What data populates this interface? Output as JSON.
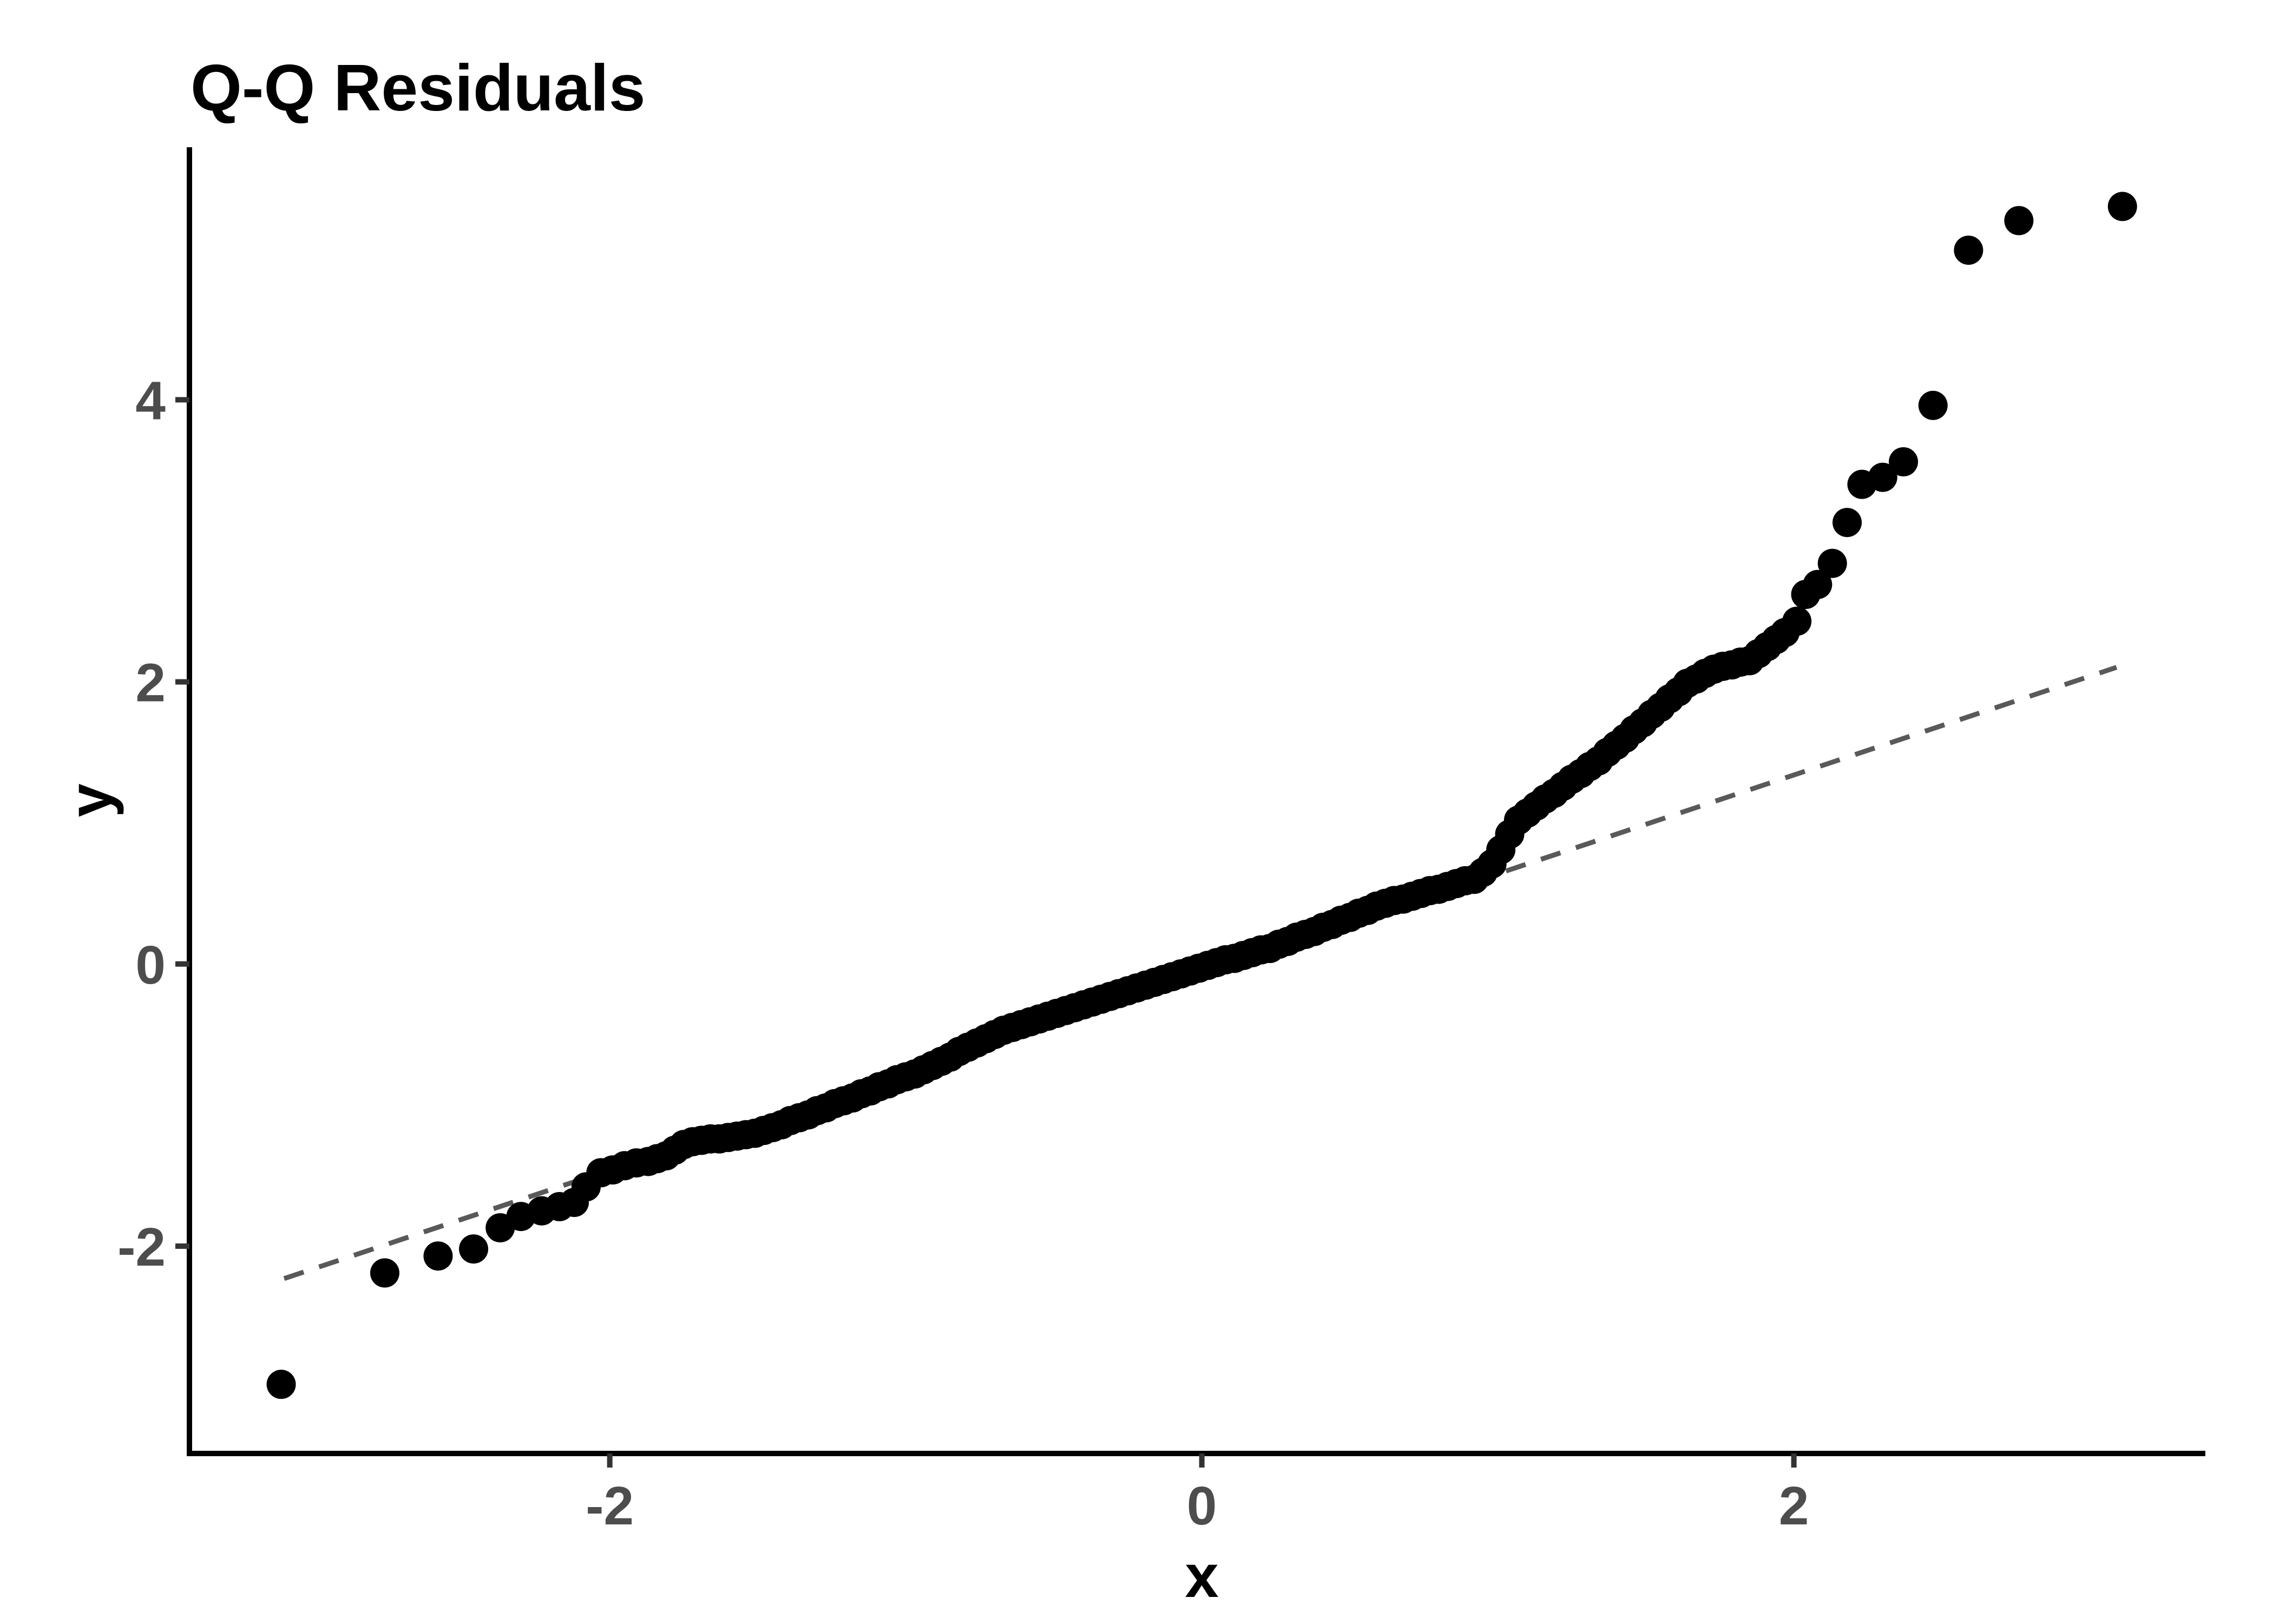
{
  "chart_data": {
    "type": "scatter",
    "title": "Q-Q Residuals",
    "xlabel": "x",
    "ylabel": "y",
    "x_ticks": {
      "values": [
        -2,
        0,
        2
      ],
      "labels": [
        "-2",
        "0",
        "2"
      ]
    },
    "y_ticks": {
      "values": [
        -2,
        0,
        2,
        4
      ],
      "labels": [
        "-2",
        "0",
        "2",
        "4"
      ]
    },
    "xlim": [
      -3.42,
      3.39
    ],
    "ylim": [
      -3.47,
      5.79
    ],
    "grid": false,
    "legend": null,
    "background_color": "#ffffff",
    "point_color": "#000000",
    "axis_line_color": "#000000",
    "tick_color": "#333333",
    "tick_label_color": "#4d4d4d",
    "reference_line": {
      "style": "dashed",
      "slope": 0.7,
      "intercept": -0.06,
      "x_start": -3.1,
      "x_end": 3.09,
      "color": "#595959"
    },
    "points": [
      [
        -3.11,
        -2.98
      ],
      [
        -2.76,
        -2.19
      ],
      [
        -2.58,
        -2.07
      ],
      [
        -2.46,
        -2.02
      ],
      [
        -2.37,
        -1.87
      ],
      [
        -2.3,
        -1.79
      ],
      [
        -2.23,
        -1.75
      ],
      [
        -2.17,
        -1.72
      ],
      [
        -2.12,
        -1.69
      ],
      [
        -2.08,
        -1.58
      ],
      [
        -2.03,
        -1.48
      ],
      [
        -1.99,
        -1.46
      ],
      [
        -1.95,
        -1.43
      ],
      [
        -1.91,
        -1.41
      ],
      [
        -1.87,
        -1.4
      ],
      [
        -1.84,
        -1.38
      ],
      [
        -1.81,
        -1.36
      ],
      [
        -1.78,
        -1.32
      ],
      [
        -1.75,
        -1.28
      ],
      [
        -1.72,
        -1.26
      ],
      [
        -1.69,
        -1.25
      ],
      [
        -1.66,
        -1.24
      ],
      [
        -1.63,
        -1.24
      ],
      [
        -1.6,
        -1.23
      ],
      [
        -1.57,
        -1.22
      ],
      [
        -1.54,
        -1.21
      ],
      [
        -1.51,
        -1.2
      ],
      [
        -1.48,
        -1.18
      ],
      [
        -1.45,
        -1.16
      ],
      [
        -1.42,
        -1.14
      ],
      [
        -1.39,
        -1.11
      ],
      [
        -1.36,
        -1.09
      ],
      [
        -1.33,
        -1.07
      ],
      [
        -1.3,
        -1.04
      ],
      [
        -1.27,
        -1.02
      ],
      [
        -1.24,
        -0.99
      ],
      [
        -1.21,
        -0.97
      ],
      [
        -1.18,
        -0.95
      ],
      [
        -1.15,
        -0.92
      ],
      [
        -1.12,
        -0.9
      ],
      [
        -1.09,
        -0.87
      ],
      [
        -1.06,
        -0.85
      ],
      [
        -1.03,
        -0.82
      ],
      [
        -1.0,
        -0.8
      ],
      [
        -0.97,
        -0.78
      ],
      [
        -0.94,
        -0.75
      ],
      [
        -0.91,
        -0.72
      ],
      [
        -0.88,
        -0.69
      ],
      [
        -0.85,
        -0.66
      ],
      [
        -0.82,
        -0.62
      ],
      [
        -0.79,
        -0.59
      ],
      [
        -0.76,
        -0.56
      ],
      [
        -0.73,
        -0.53
      ],
      [
        -0.7,
        -0.5
      ],
      [
        -0.67,
        -0.47
      ],
      [
        -0.64,
        -0.45
      ],
      [
        -0.61,
        -0.43
      ],
      [
        -0.58,
        -0.41
      ],
      [
        -0.55,
        -0.39
      ],
      [
        -0.52,
        -0.37
      ],
      [
        -0.49,
        -0.35
      ],
      [
        -0.46,
        -0.33
      ],
      [
        -0.43,
        -0.31
      ],
      [
        -0.4,
        -0.29
      ],
      [
        -0.37,
        -0.27
      ],
      [
        -0.34,
        -0.25
      ],
      [
        -0.31,
        -0.23
      ],
      [
        -0.28,
        -0.21
      ],
      [
        -0.25,
        -0.19
      ],
      [
        -0.22,
        -0.17
      ],
      [
        -0.19,
        -0.15
      ],
      [
        -0.16,
        -0.13
      ],
      [
        -0.13,
        -0.11
      ],
      [
        -0.1,
        -0.09
      ],
      [
        -0.07,
        -0.07
      ],
      [
        -0.04,
        -0.05
      ],
      [
        -0.01,
        -0.03
      ],
      [
        0.02,
        -0.01
      ],
      [
        0.05,
        0.01
      ],
      [
        0.08,
        0.03
      ],
      [
        0.11,
        0.04
      ],
      [
        0.14,
        0.06
      ],
      [
        0.17,
        0.08
      ],
      [
        0.2,
        0.1
      ],
      [
        0.23,
        0.11
      ],
      [
        0.26,
        0.14
      ],
      [
        0.29,
        0.16
      ],
      [
        0.32,
        0.19
      ],
      [
        0.35,
        0.21
      ],
      [
        0.38,
        0.23
      ],
      [
        0.41,
        0.26
      ],
      [
        0.44,
        0.28
      ],
      [
        0.47,
        0.31
      ],
      [
        0.5,
        0.33
      ],
      [
        0.53,
        0.36
      ],
      [
        0.56,
        0.38
      ],
      [
        0.59,
        0.41
      ],
      [
        0.62,
        0.43
      ],
      [
        0.65,
        0.45
      ],
      [
        0.68,
        0.46
      ],
      [
        0.71,
        0.48
      ],
      [
        0.74,
        0.5
      ],
      [
        0.77,
        0.52
      ],
      [
        0.8,
        0.53
      ],
      [
        0.83,
        0.55
      ],
      [
        0.86,
        0.57
      ],
      [
        0.89,
        0.59
      ],
      [
        0.92,
        0.6
      ],
      [
        0.95,
        0.65
      ],
      [
        0.98,
        0.71
      ],
      [
        1.01,
        0.81
      ],
      [
        1.04,
        0.92
      ],
      [
        1.07,
        1.02
      ],
      [
        1.1,
        1.07
      ],
      [
        1.13,
        1.12
      ],
      [
        1.16,
        1.17
      ],
      [
        1.19,
        1.21
      ],
      [
        1.22,
        1.26
      ],
      [
        1.25,
        1.31
      ],
      [
        1.28,
        1.35
      ],
      [
        1.31,
        1.4
      ],
      [
        1.34,
        1.44
      ],
      [
        1.37,
        1.5
      ],
      [
        1.4,
        1.55
      ],
      [
        1.43,
        1.6
      ],
      [
        1.46,
        1.66
      ],
      [
        1.49,
        1.71
      ],
      [
        1.52,
        1.77
      ],
      [
        1.55,
        1.82
      ],
      [
        1.58,
        1.88
      ],
      [
        1.61,
        1.93
      ],
      [
        1.64,
        1.99
      ],
      [
        1.67,
        2.02
      ],
      [
        1.7,
        2.06
      ],
      [
        1.73,
        2.09
      ],
      [
        1.76,
        2.11
      ],
      [
        1.79,
        2.12
      ],
      [
        1.82,
        2.14
      ],
      [
        1.85,
        2.15
      ],
      [
        1.88,
        2.2
      ],
      [
        1.91,
        2.25
      ],
      [
        1.94,
        2.3
      ],
      [
        1.97,
        2.35
      ],
      [
        2.01,
        2.43
      ],
      [
        2.04,
        2.62
      ],
      [
        2.08,
        2.69
      ],
      [
        2.13,
        2.84
      ],
      [
        2.18,
        3.13
      ],
      [
        2.23,
        3.4
      ],
      [
        2.3,
        3.45
      ],
      [
        2.37,
        3.56
      ],
      [
        2.47,
        3.96
      ],
      [
        2.59,
        5.06
      ],
      [
        2.76,
        5.27
      ],
      [
        3.11,
        5.37
      ]
    ]
  }
}
